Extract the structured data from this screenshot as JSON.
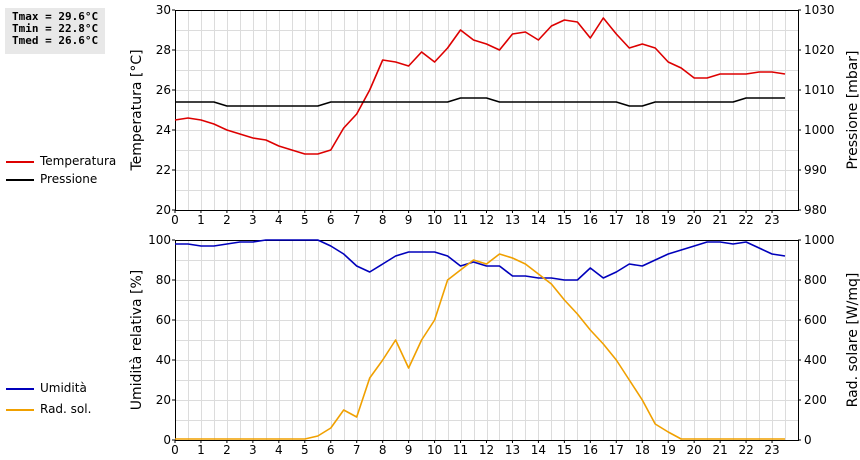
{
  "stats": {
    "tmax": "Tmax = 29.6°C",
    "tmin": "Tmin = 22.8°C",
    "tmed": "Tmed = 26.6°C"
  },
  "chart_data": [
    {
      "type": "line",
      "ylabel_left": "Temperatura [°C]",
      "ylabel_right": "Pressione [mbar]",
      "xlim": [
        0,
        24
      ],
      "ylim_left": [
        20,
        30
      ],
      "ylim_right": [
        980,
        1030
      ],
      "yticks_left": [
        20,
        22,
        24,
        26,
        28,
        30
      ],
      "yticks_right": [
        980,
        990,
        1000,
        1010,
        1020,
        1030
      ],
      "xticks": [
        0,
        1,
        2,
        3,
        4,
        5,
        6,
        7,
        8,
        9,
        10,
        11,
        12,
        13,
        14,
        15,
        16,
        17,
        18,
        19,
        20,
        21,
        22,
        23
      ],
      "grid": true,
      "legend_position": "left",
      "series": [
        {
          "name": "Temperatura",
          "axis": "left",
          "color": "#dd0000",
          "x": [
            0,
            0.5,
            1,
            1.5,
            2,
            2.5,
            3,
            3.5,
            4,
            4.5,
            5,
            5.5,
            6,
            6.5,
            7,
            7.5,
            8,
            8.5,
            9,
            9.5,
            10,
            10.5,
            11,
            11.5,
            12,
            12.5,
            13,
            13.5,
            14,
            14.5,
            15,
            15.5,
            16,
            16.5,
            17,
            17.5,
            18,
            18.5,
            19,
            19.5,
            20,
            20.5,
            21,
            21.5,
            22,
            22.5,
            23,
            23.5
          ],
          "values": [
            24.5,
            24.6,
            24.5,
            24.3,
            24.0,
            23.8,
            23.6,
            23.5,
            23.2,
            23.0,
            22.8,
            22.8,
            23.0,
            24.1,
            24.8,
            26.0,
            27.5,
            27.4,
            27.2,
            27.9,
            27.4,
            28.1,
            29.0,
            28.5,
            28.3,
            28.0,
            28.8,
            28.9,
            28.5,
            29.2,
            29.5,
            29.4,
            28.6,
            29.6,
            28.8,
            28.1,
            28.3,
            28.1,
            27.4,
            27.1,
            26.6,
            26.6,
            26.8,
            26.8,
            26.8,
            26.9,
            26.9,
            26.8
          ]
        },
        {
          "name": "Pressione",
          "axis": "right",
          "color": "#000000",
          "x": [
            0,
            0.5,
            1,
            1.5,
            2,
            2.5,
            3,
            3.5,
            4,
            4.5,
            5,
            5.5,
            6,
            6.5,
            7,
            7.5,
            8,
            8.5,
            9,
            9.5,
            10,
            10.5,
            11,
            11.5,
            12,
            12.5,
            13,
            13.5,
            14,
            14.5,
            15,
            15.5,
            16,
            16.5,
            17,
            17.5,
            18,
            18.5,
            19,
            19.5,
            20,
            20.5,
            21,
            21.5,
            22,
            22.5,
            23,
            23.5
          ],
          "values": [
            1007,
            1007,
            1007,
            1007,
            1006,
            1006,
            1006,
            1006,
            1006,
            1006,
            1006,
            1006,
            1007,
            1007,
            1007,
            1007,
            1007,
            1007,
            1007,
            1007,
            1007,
            1007,
            1008,
            1008,
            1008,
            1007,
            1007,
            1007,
            1007,
            1007,
            1007,
            1007,
            1007,
            1007,
            1007,
            1006,
            1006,
            1007,
            1007,
            1007,
            1007,
            1007,
            1007,
            1007,
            1008,
            1008,
            1008,
            1008
          ]
        }
      ]
    },
    {
      "type": "line",
      "ylabel_left": "Umidità relativa [%]",
      "ylabel_right": "Rad. solare [W/mq]",
      "xlim": [
        0,
        24
      ],
      "ylim_left": [
        0,
        100
      ],
      "ylim_right": [
        0,
        1000
      ],
      "yticks_left": [
        0,
        20,
        40,
        60,
        80,
        100
      ],
      "yticks_right": [
        0,
        200,
        400,
        600,
        800,
        1000
      ],
      "xticks": [
        0,
        1,
        2,
        3,
        4,
        5,
        6,
        7,
        8,
        9,
        10,
        11,
        12,
        13,
        14,
        15,
        16,
        17,
        18,
        19,
        20,
        21,
        22,
        23
      ],
      "grid": true,
      "legend_position": "left",
      "series": [
        {
          "name": "Umidità",
          "axis": "left",
          "color": "#0000bb",
          "x": [
            0,
            0.5,
            1,
            1.5,
            2,
            2.5,
            3,
            3.5,
            4,
            4.5,
            5,
            5.5,
            6,
            6.5,
            7,
            7.5,
            8,
            8.5,
            9,
            9.5,
            10,
            10.5,
            11,
            11.5,
            12,
            12.5,
            13,
            13.5,
            14,
            14.5,
            15,
            15.5,
            16,
            16.5,
            17,
            17.5,
            18,
            18.5,
            19,
            19.5,
            20,
            20.5,
            21,
            21.5,
            22,
            22.5,
            23,
            23.5
          ],
          "values": [
            98,
            98,
            97,
            97,
            98,
            99,
            99,
            100,
            100,
            100,
            100,
            100,
            97,
            93,
            87,
            84,
            88,
            92,
            94,
            94,
            94,
            92,
            87,
            89,
            87,
            87,
            82,
            82,
            81,
            81,
            80,
            80,
            86,
            81,
            84,
            88,
            87,
            90,
            93,
            95,
            97,
            99,
            99,
            98,
            99,
            96,
            93,
            92
          ]
        },
        {
          "name": "Rad. sol.",
          "axis": "right",
          "color": "#f0a000",
          "x": [
            0,
            0.5,
            1,
            1.5,
            2,
            2.5,
            3,
            3.5,
            4,
            4.5,
            5,
            5.5,
            6,
            6.5,
            7,
            7.5,
            8,
            8.5,
            9,
            9.5,
            10,
            10.5,
            11,
            11.5,
            12,
            12.5,
            13,
            13.5,
            14,
            14.5,
            15,
            15.5,
            16,
            16.5,
            17,
            17.5,
            18,
            18.5,
            19,
            19.5,
            20,
            20.5,
            21,
            21.5,
            22,
            22.5,
            23,
            23.5
          ],
          "values": [
            5,
            5,
            5,
            5,
            5,
            5,
            5,
            5,
            5,
            5,
            5,
            20,
            60,
            150,
            115,
            310,
            400,
            500,
            360,
            500,
            600,
            800,
            850,
            900,
            880,
            930,
            910,
            880,
            830,
            780,
            700,
            630,
            550,
            480,
            400,
            300,
            200,
            80,
            40,
            5,
            5,
            5,
            5,
            5,
            5,
            5,
            5,
            5
          ]
        }
      ]
    }
  ]
}
